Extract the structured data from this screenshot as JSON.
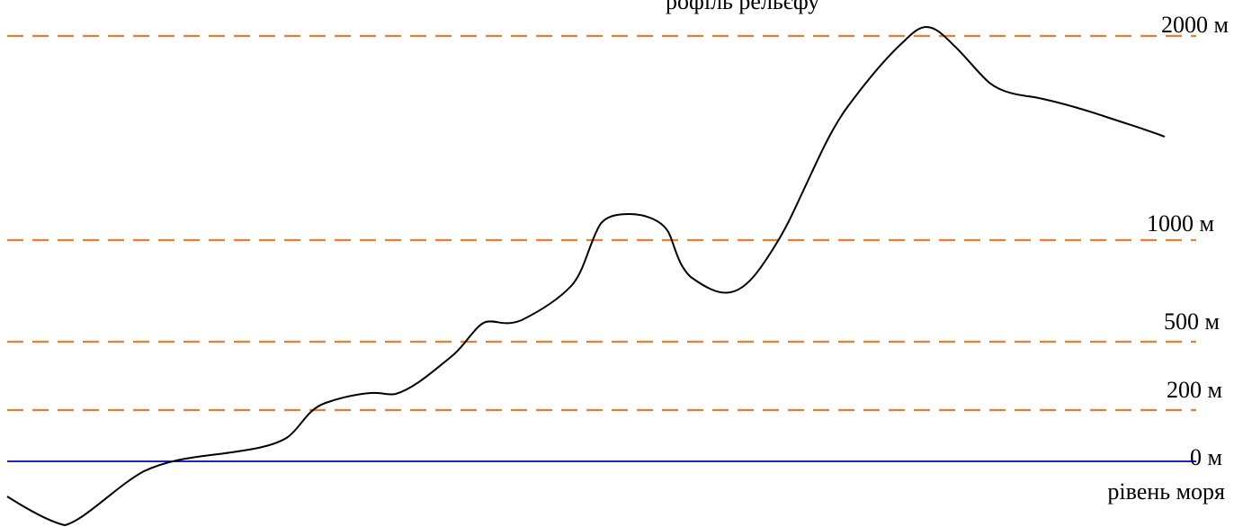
{
  "title_fragment": "рофіль рельєфу",
  "sea_level_label": "рівень моря",
  "levels": [
    {
      "label": "2000 м",
      "kind": "dashed",
      "color": "#ED7D31"
    },
    {
      "label": "1000 м",
      "kind": "dashed",
      "color": "#ED7D31"
    },
    {
      "label": "500 м",
      "kind": "dashed",
      "color": "#ED7D31"
    },
    {
      "label": "200 м",
      "kind": "dashed",
      "color": "#ED7D31"
    },
    {
      "label": "0 м",
      "kind": "solid",
      "color": "#0000CC"
    }
  ],
  "profile_color": "#000000"
}
